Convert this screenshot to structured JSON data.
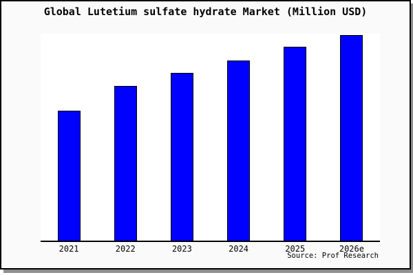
{
  "title": "Global Lutetium sulfate hydrate Market (Million USD)",
  "source": "Source: Prof Research",
  "colors": {
    "bar_fill": "#0000ff",
    "bar_border": "#000000",
    "frame_background": "#fafafa",
    "plot_background": "#ffffff",
    "frame_border": "#000000",
    "shadow": "#8f8f8f",
    "text": "#000000"
  },
  "chart_data": {
    "type": "bar",
    "title": "Global Lutetium sulfate hydrate Market (Million USD)",
    "categories": [
      "2021",
      "2022",
      "2023",
      "2024",
      "2025",
      "2026e"
    ],
    "values": [
      63,
      75,
      81.5,
      87.5,
      94,
      100
    ],
    "xlabel": "",
    "ylabel": "",
    "units": "Million USD",
    "ylim": [
      0,
      100.5
    ],
    "grid": false,
    "legend": false,
    "values_note": "No y-axis scale is shown in the figure; values are relative bar heights indexed to 2026e = 100"
  }
}
